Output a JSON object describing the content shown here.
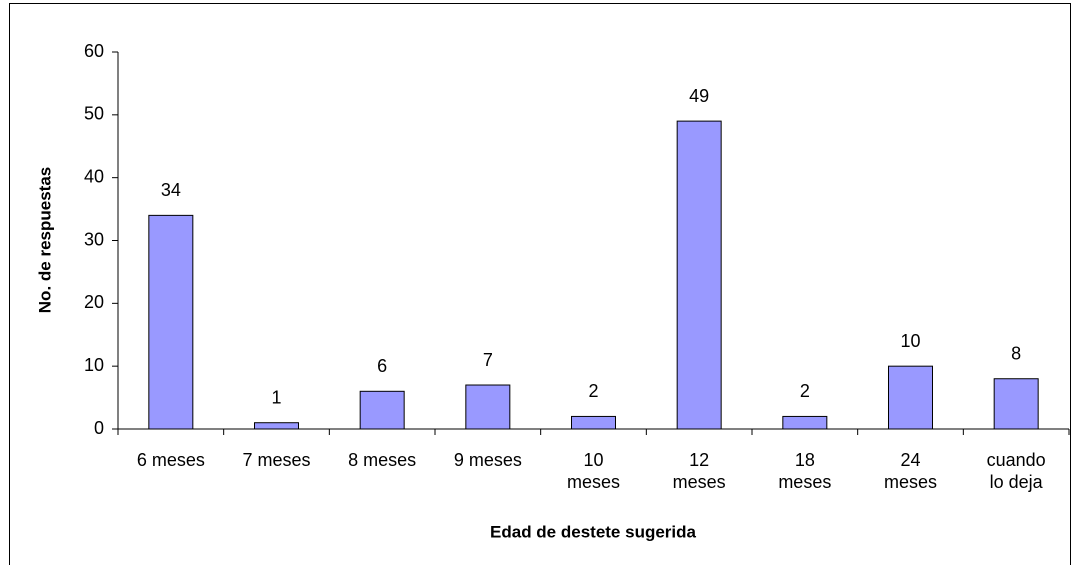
{
  "chart_data": {
    "type": "bar",
    "x_label": "Edad de destete sugerida",
    "y_label": "No. de respuestas",
    "categories": [
      "6 meses",
      "7 meses",
      "8 meses",
      "9 meses",
      "10\nmeses",
      "12\nmeses",
      "18\nmeses",
      "24\nmeses",
      "cuando\nlo deja"
    ],
    "values": [
      34,
      1,
      6,
      7,
      2,
      49,
      2,
      10,
      8
    ],
    "color": "#9999ff",
    "ylim": [
      0,
      60
    ],
    "yticks": [
      0,
      10,
      20,
      30,
      40,
      50,
      60
    ],
    "grid": false
  }
}
